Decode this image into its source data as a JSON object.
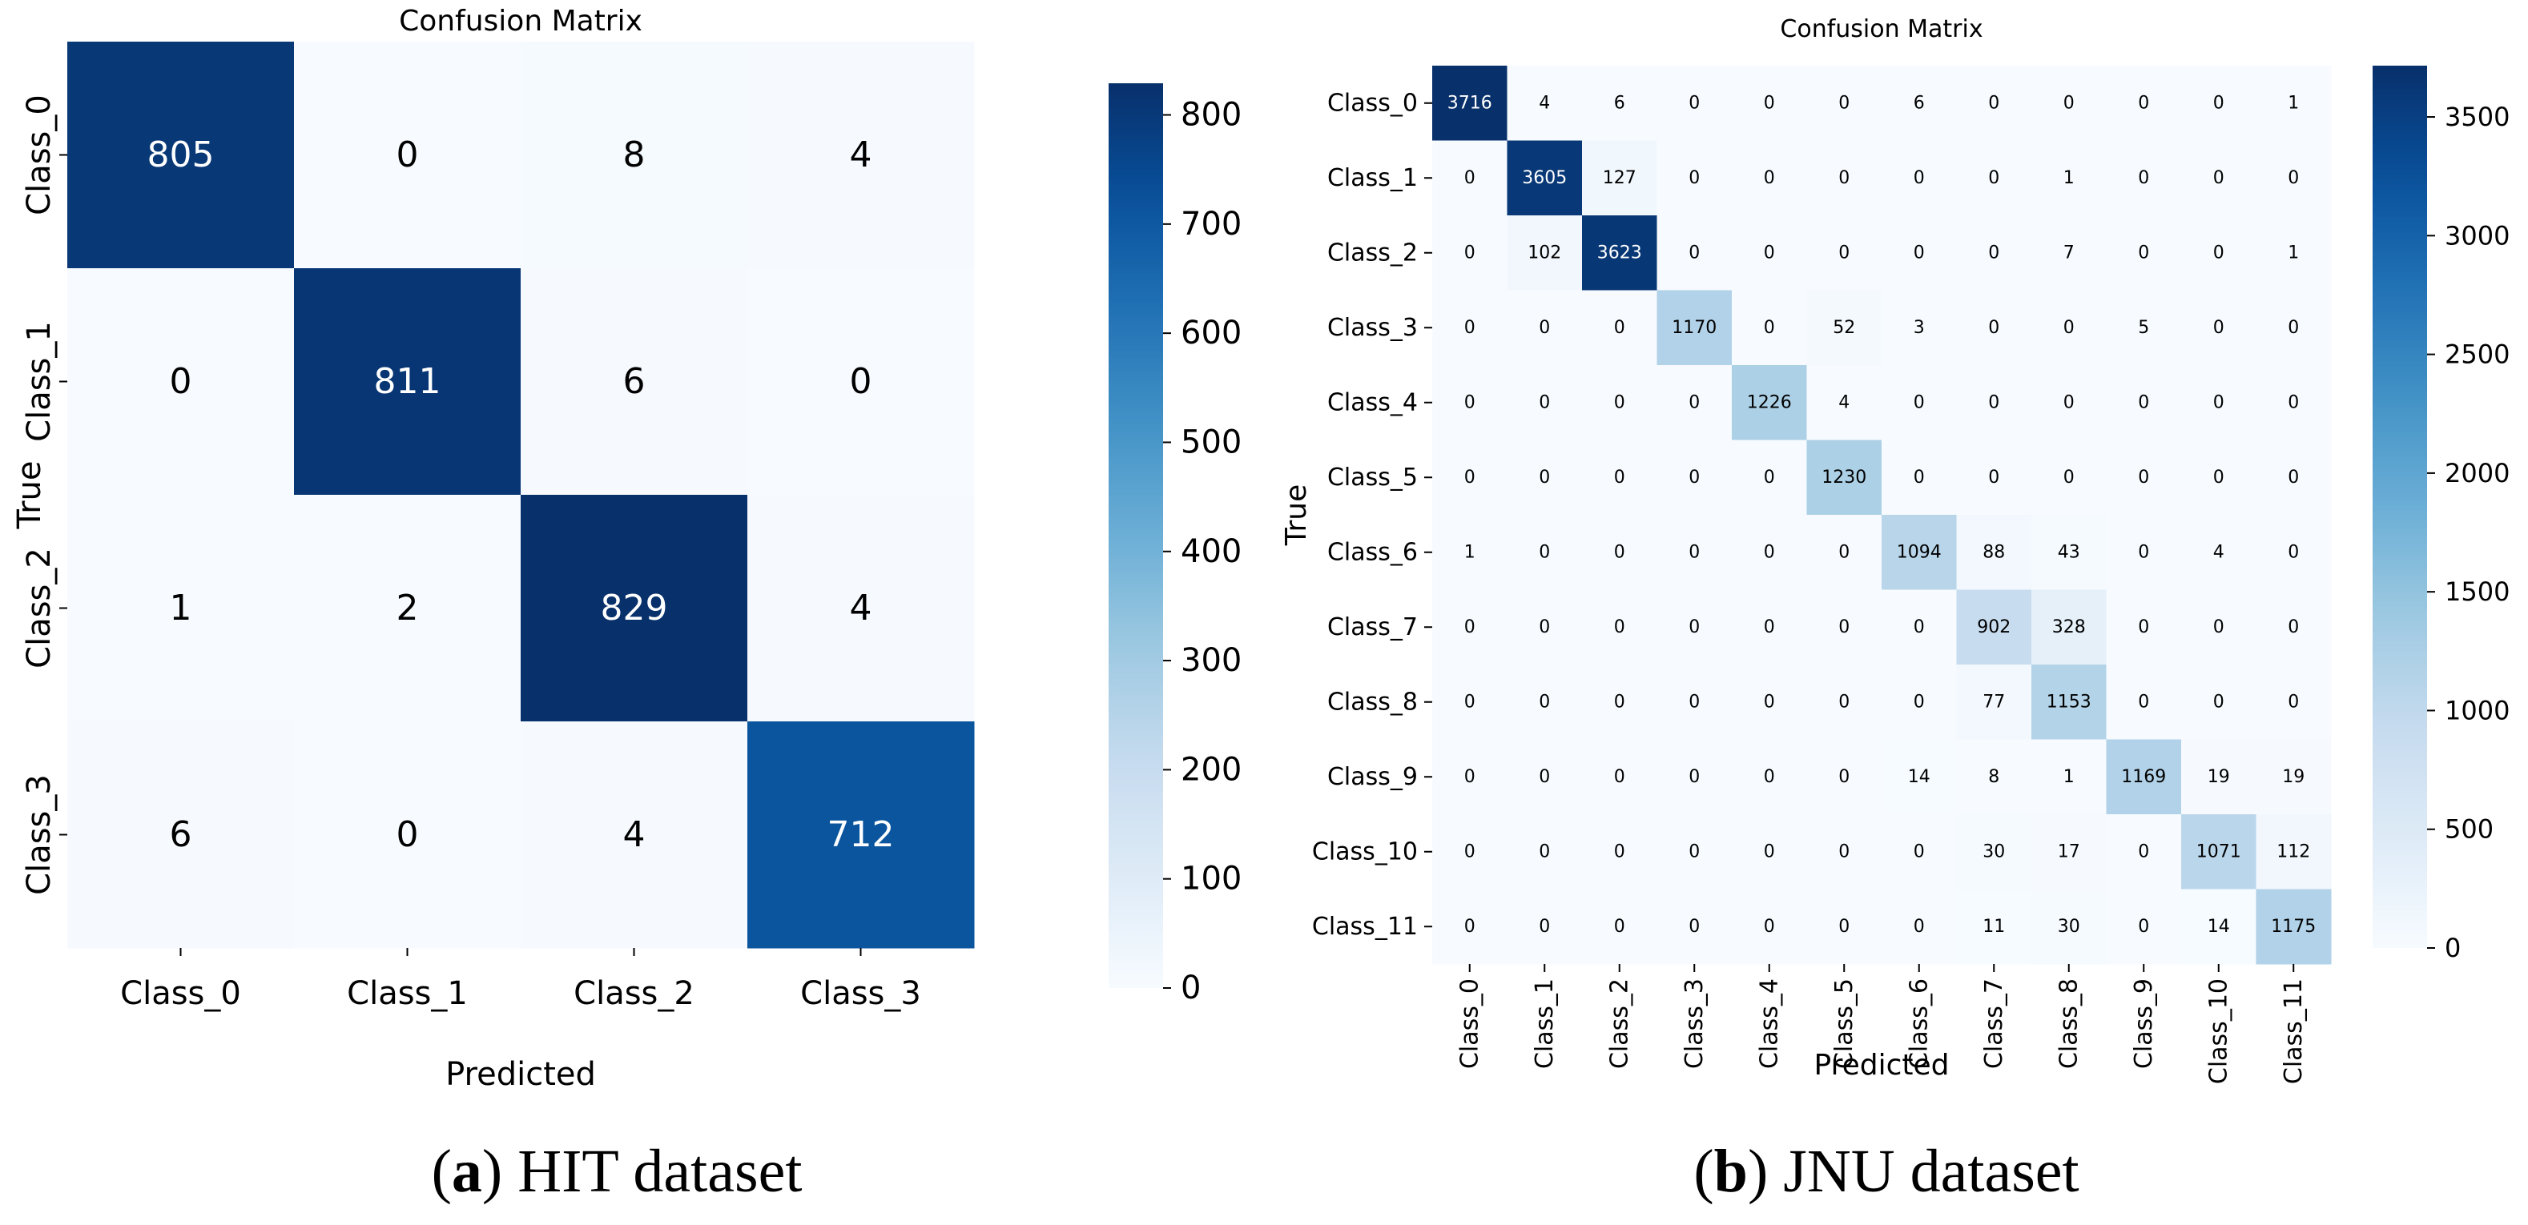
{
  "colors": {
    "scale": [
      "#f7fbff",
      "#deebf7",
      "#c6dbef",
      "#9ecae1",
      "#6baed6",
      "#4292c6",
      "#2171b5",
      "#08519c",
      "#08306b"
    ],
    "dark_text": "#000000",
    "light_text": "#ffffff"
  },
  "chart_data": [
    {
      "type": "heatmap",
      "title": "Confusion Matrix",
      "xlabel": "Predicted",
      "ylabel": "True",
      "caption": {
        "letter": "a",
        "text": " HIT dataset"
      },
      "categories": [
        "Class_0",
        "Class_1",
        "Class_2",
        "Class_3"
      ],
      "matrix": [
        [
          805,
          0,
          8,
          4
        ],
        [
          0,
          811,
          6,
          0
        ],
        [
          1,
          2,
          829,
          4
        ],
        [
          6,
          0,
          4,
          712
        ]
      ],
      "colorbar": {
        "range": [
          0,
          829
        ],
        "ticks": [
          0,
          100,
          200,
          300,
          400,
          500,
          600,
          700,
          800
        ]
      },
      "colormap": "Blues"
    },
    {
      "type": "heatmap",
      "title": "Confusion Matrix",
      "xlabel": "Predicted",
      "ylabel": "True",
      "caption": {
        "letter": "b",
        "text": " JNU dataset"
      },
      "categories": [
        "Class_0",
        "Class_1",
        "Class_2",
        "Class_3",
        "Class_4",
        "Class_5",
        "Class_6",
        "Class_7",
        "Class_8",
        "Class_9",
        "Class_10",
        "Class_11"
      ],
      "matrix": [
        [
          3716,
          4,
          6,
          0,
          0,
          0,
          6,
          0,
          0,
          0,
          0,
          1
        ],
        [
          0,
          3605,
          127,
          0,
          0,
          0,
          0,
          0,
          1,
          0,
          0,
          0
        ],
        [
          0,
          102,
          3623,
          0,
          0,
          0,
          0,
          0,
          7,
          0,
          0,
          1
        ],
        [
          0,
          0,
          0,
          1170,
          0,
          52,
          3,
          0,
          0,
          5,
          0,
          0
        ],
        [
          0,
          0,
          0,
          0,
          1226,
          4,
          0,
          0,
          0,
          0,
          0,
          0
        ],
        [
          0,
          0,
          0,
          0,
          0,
          1230,
          0,
          0,
          0,
          0,
          0,
          0
        ],
        [
          1,
          0,
          0,
          0,
          0,
          0,
          1094,
          88,
          43,
          0,
          4,
          0
        ],
        [
          0,
          0,
          0,
          0,
          0,
          0,
          0,
          902,
          328,
          0,
          0,
          0
        ],
        [
          0,
          0,
          0,
          0,
          0,
          0,
          0,
          77,
          1153,
          0,
          0,
          0
        ],
        [
          0,
          0,
          0,
          0,
          0,
          0,
          14,
          8,
          1,
          1169,
          19,
          19
        ],
        [
          0,
          0,
          0,
          0,
          0,
          0,
          0,
          30,
          17,
          0,
          1071,
          112
        ],
        [
          0,
          0,
          0,
          0,
          0,
          0,
          0,
          11,
          30,
          0,
          14,
          1175
        ]
      ],
      "colorbar": {
        "range": [
          0,
          3716
        ],
        "ticks": [
          0,
          500,
          1000,
          1500,
          2000,
          2500,
          3000,
          3500
        ]
      },
      "colormap": "Blues"
    }
  ]
}
